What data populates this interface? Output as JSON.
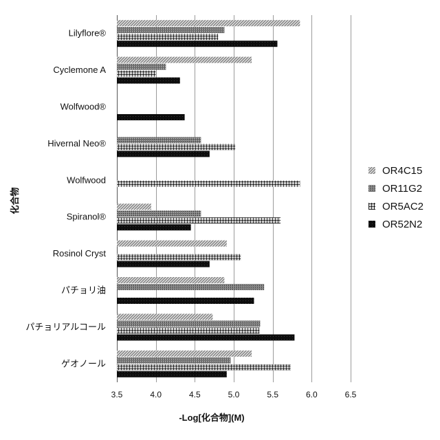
{
  "chart_data": {
    "type": "bar",
    "orientation": "horizontal",
    "xlabel": "-Log[化合物](M)",
    "ylabel": "化合物",
    "xlim": [
      3.5,
      6.5
    ],
    "xticks": [
      "3.5",
      "4.0",
      "4.5",
      "5.0",
      "5.5",
      "6.0",
      "6.5"
    ],
    "grid": true,
    "legend_position": "right",
    "categories": [
      "Lilyflore®",
      "Cyclemone A",
      "Wolfwood®",
      "Hivernal Neo®",
      "Wolfwood",
      "Spiranol®",
      "Rosinol Cryst",
      "パチョリ油",
      "パチョリアルコール",
      "ゲオノール"
    ],
    "series": [
      {
        "name": "OR4C15",
        "pattern": "diagonal",
        "values": [
          5.85,
          5.23,
          null,
          null,
          null,
          3.94,
          4.91,
          4.88,
          4.73,
          5.23
        ]
      },
      {
        "name": "OR11G2",
        "pattern": "dots",
        "values": [
          4.88,
          4.13,
          null,
          4.58,
          null,
          4.58,
          null,
          5.39,
          5.34,
          4.96
        ]
      },
      {
        "name": "OR5AC2",
        "pattern": "grid",
        "values": [
          4.8,
          4.0,
          null,
          5.02,
          5.85,
          5.6,
          5.09,
          null,
          5.33,
          5.73
        ]
      },
      {
        "name": "OR52N2",
        "pattern": "solid",
        "values": [
          5.56,
          4.31,
          4.37,
          4.69,
          null,
          4.45,
          4.69,
          5.26,
          5.78,
          4.91
        ]
      }
    ]
  }
}
